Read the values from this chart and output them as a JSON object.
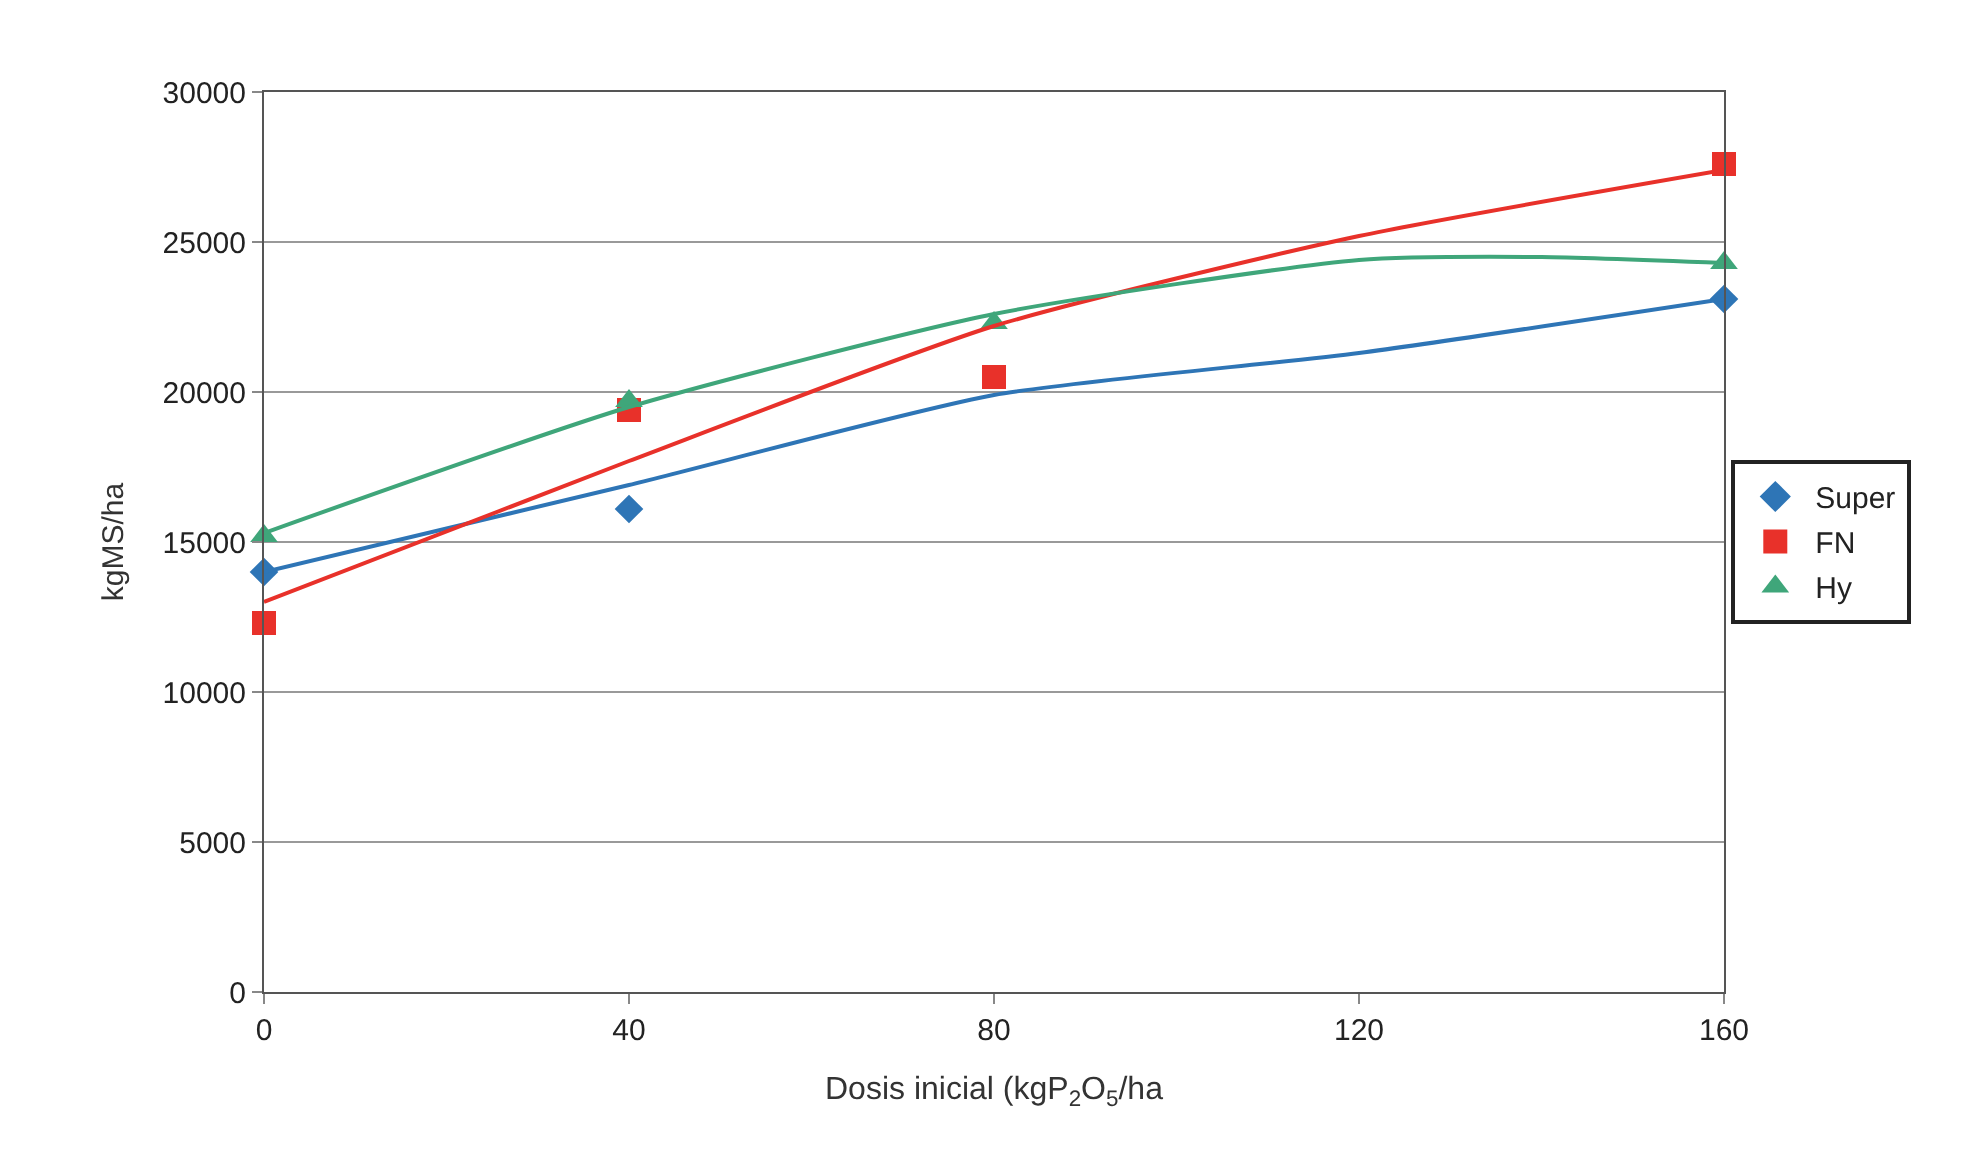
{
  "chart_data": {
    "type": "scatter",
    "xlabel": "Dosis inicial (kgP$_{2}$O$_{5}$/ha",
    "ylabel": "kgMS/ha",
    "x": [
      0,
      40,
      80,
      160
    ],
    "series": [
      {
        "name": "Super",
        "color": "#2e75b6",
        "marker": "diamond",
        "values": [
          14000,
          16100,
          null,
          23100
        ]
      },
      {
        "name": "FN",
        "color": "#e8312a",
        "marker": "square",
        "values": [
          12300,
          19400,
          20500,
          27600
        ]
      },
      {
        "name": "Hy",
        "color": "#3fa67a",
        "marker": "triangle",
        "values": [
          15200,
          19700,
          22300,
          24300
        ]
      },
      {
        "type": "line",
        "color": "#2e75b6",
        "marker": "none",
        "x": [
          0,
          40,
          80,
          120,
          160
        ],
        "values": [
          14000,
          16900,
          19900,
          21300,
          23100
        ]
      },
      {
        "type": "line",
        "color": "#e8312a",
        "marker": "none",
        "x": [
          0,
          40,
          80,
          120,
          160
        ],
        "values": [
          13000,
          17700,
          22200,
          25200,
          27400
        ]
      },
      {
        "type": "line",
        "color": "#3fa67a",
        "marker": "none",
        "x": [
          0,
          40,
          80,
          120,
          140,
          160
        ],
        "values": [
          15300,
          19500,
          22600,
          24400,
          24500,
          24300
        ]
      }
    ],
    "xlim": [
      0,
      160
    ],
    "xticks": [
      0,
      40,
      80,
      120,
      160
    ],
    "ylim": [
      0,
      30000
    ],
    "yticks": [
      0,
      5000,
      10000,
      15000,
      20000,
      25000,
      30000
    ],
    "grid": "y",
    "legend": "right"
  }
}
